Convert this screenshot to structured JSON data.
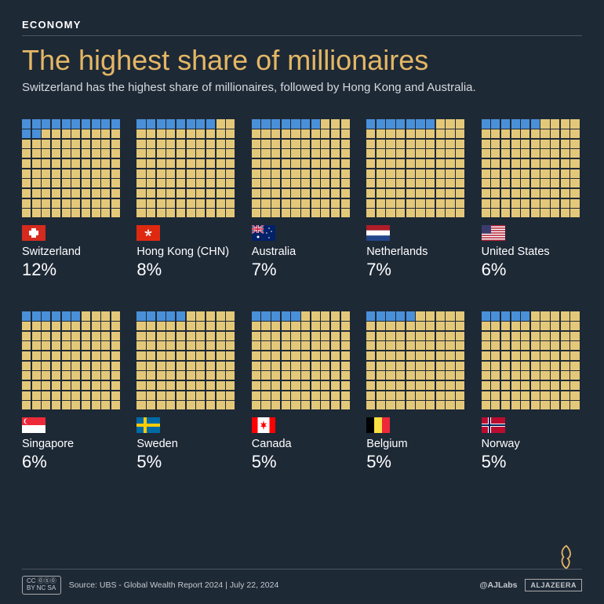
{
  "category": "ECONOMY",
  "title": "The highest share of millionaires",
  "subtitle": "Switzerland has the highest share of millionaires, followed by Hong Kong and Australia.",
  "colors": {
    "background": "#1e2936",
    "title": "#e4b765",
    "text": "#ffffff",
    "subtitle_text": "#d5d9dd",
    "divider": "#4a5560",
    "cell_base": "#e4c87a",
    "cell_highlight": "#4a90d9"
  },
  "waffle": {
    "rows": 10,
    "cols": 10,
    "total_cells": 100
  },
  "countries": [
    {
      "name": "Switzerland",
      "pct": "12%",
      "value": 12,
      "flag": "switzerland"
    },
    {
      "name": "Hong Kong (CHN)",
      "pct": "8%",
      "value": 8,
      "flag": "hongkong"
    },
    {
      "name": "Australia",
      "pct": "7%",
      "value": 7,
      "flag": "australia"
    },
    {
      "name": "Netherlands",
      "pct": "7%",
      "value": 7,
      "flag": "netherlands"
    },
    {
      "name": "United States",
      "pct": "6%",
      "value": 6,
      "flag": "usa"
    },
    {
      "name": "Singapore",
      "pct": "6%",
      "value": 6,
      "flag": "singapore"
    },
    {
      "name": "Sweden",
      "pct": "5%",
      "value": 5,
      "flag": "sweden"
    },
    {
      "name": "Canada",
      "pct": "5%",
      "value": 5,
      "flag": "canada"
    },
    {
      "name": "Belgium",
      "pct": "5%",
      "value": 5,
      "flag": "belgium"
    },
    {
      "name": "Norway",
      "pct": "5%",
      "value": 5,
      "flag": "norway"
    }
  ],
  "footer": {
    "cc_label": "CC ⓪⑤⓪",
    "cc_sub": "BY NC SA",
    "source": "Source: UBS - Global Wealth Report 2024  |  July 22, 2024",
    "handle": "@AJLabs",
    "brand": "ALJAZEERA"
  }
}
